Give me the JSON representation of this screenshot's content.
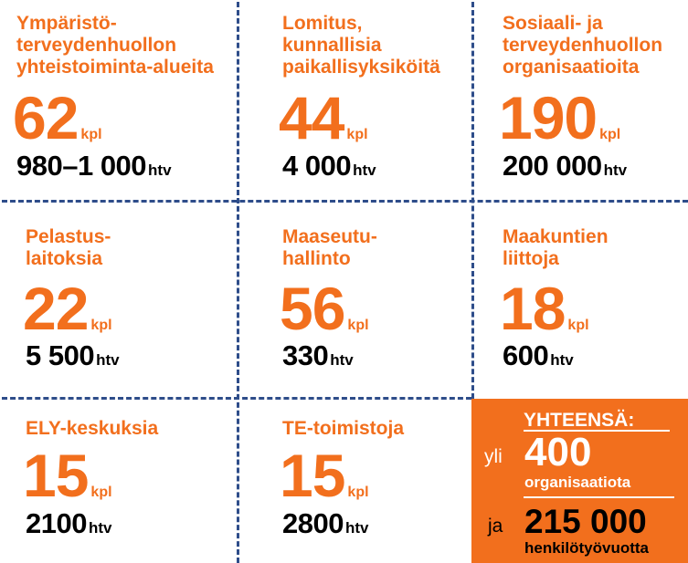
{
  "cells": [
    {
      "label": "Ympäristö-\nterveydenhuollon\nyhteistoiminta-alueita",
      "count": "62",
      "count_unit": "kpl",
      "htv": "980–1 000",
      "htv_unit": "htv"
    },
    {
      "label": "Lomitus,\nkunnallisia\npaikallisyksiköitä",
      "count": "44",
      "count_unit": "kpl",
      "htv": "4 000",
      "htv_unit": "htv"
    },
    {
      "label": "Sosiaali- ja\nterveydenhuollon\norganisaatioita",
      "count": "190",
      "count_unit": "kpl",
      "htv": "200 000",
      "htv_unit": "htv"
    },
    {
      "label": "Pelastus-\nlaitoksia",
      "count": "22",
      "count_unit": "kpl",
      "htv": "5 500",
      "htv_unit": "htv"
    },
    {
      "label": "Maaseutu-\nhallinto",
      "count": "56",
      "count_unit": "kpl",
      "htv": "330",
      "htv_unit": "htv"
    },
    {
      "label": "Maakuntien\nliittoja",
      "count": "18",
      "count_unit": "kpl",
      "htv": "600",
      "htv_unit": "htv"
    },
    {
      "label": "ELY-keskuksia",
      "count": "15",
      "count_unit": "kpl",
      "htv": "2100",
      "htv_unit": "htv"
    },
    {
      "label": "TE-toimistoja",
      "count": "15",
      "count_unit": "kpl",
      "htv": "2800",
      "htv_unit": "htv"
    }
  ],
  "total": {
    "heading": "YHTEENSÄ:",
    "prefix_1": "yli",
    "value_1": "400",
    "caption_1": "organisaatiota",
    "prefix_2": "ja",
    "value_2": "215 000",
    "caption_2": "henkilötyövuotta"
  },
  "colors": {
    "accent": "#f26f1d",
    "divider": "#2e4d8a",
    "text": "#000000"
  }
}
